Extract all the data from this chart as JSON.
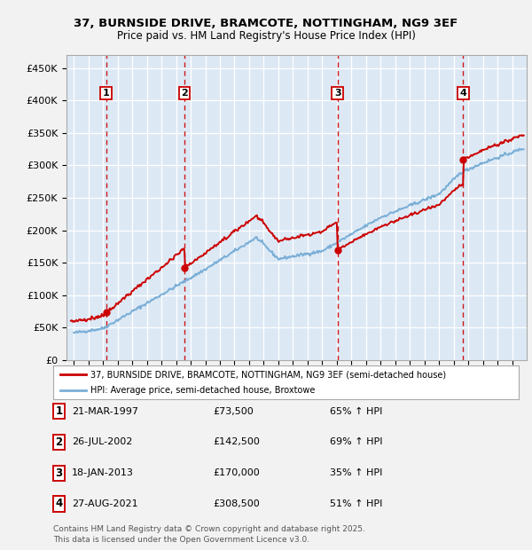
{
  "title1": "37, BURNSIDE DRIVE, BRAMCOTE, NOTTINGHAM, NG9 3EF",
  "title2": "Price paid vs. HM Land Registry's House Price Index (HPI)",
  "ylim": [
    0,
    470000
  ],
  "yticks": [
    0,
    50000,
    100000,
    150000,
    200000,
    250000,
    300000,
    350000,
    400000,
    450000
  ],
  "ytick_labels": [
    "£0",
    "£50K",
    "£100K",
    "£150K",
    "£200K",
    "£250K",
    "£300K",
    "£350K",
    "£400K",
    "£450K"
  ],
  "background_color": "#dce9f5",
  "fig_bg_color": "#f2f2f2",
  "grid_color": "#ffffff",
  "sale_color": "#cc0000",
  "hpi_color": "#7aaed6",
  "dashed_line_color": "#cc0000",
  "transactions": [
    {
      "num": 1,
      "date": "21-MAR-1997",
      "price": 73500,
      "year": 1997.22,
      "label": "1"
    },
    {
      "num": 2,
      "date": "26-JUL-2002",
      "price": 142500,
      "year": 2002.57,
      "label": "2"
    },
    {
      "num": 3,
      "date": "18-JAN-2013",
      "price": 170000,
      "year": 2013.05,
      "label": "3"
    },
    {
      "num": 4,
      "date": "27-AUG-2021",
      "price": 308500,
      "year": 2021.65,
      "label": "4"
    }
  ],
  "legend_sale_label": "37, BURNSIDE DRIVE, BRAMCOTE, NOTTINGHAM, NG9 3EF (semi-detached house)",
  "legend_hpi_label": "HPI: Average price, semi-detached house, Broxtowe",
  "table_rows": [
    [
      "1",
      "21-MAR-1997",
      "£73,500",
      "65% ↑ HPI"
    ],
    [
      "2",
      "26-JUL-2002",
      "£142,500",
      "69% ↑ HPI"
    ],
    [
      "3",
      "18-JAN-2013",
      "£170,000",
      "35% ↑ HPI"
    ],
    [
      "4",
      "27-AUG-2021",
      "£308,500",
      "51% ↑ HPI"
    ]
  ],
  "footnote1": "Contains HM Land Registry data © Crown copyright and database right 2025.",
  "footnote2": "This data is licensed under the Open Government Licence v3.0.",
  "xlim": [
    1994.5,
    2026.0
  ],
  "xtick_start": 1995,
  "xtick_end": 2025
}
